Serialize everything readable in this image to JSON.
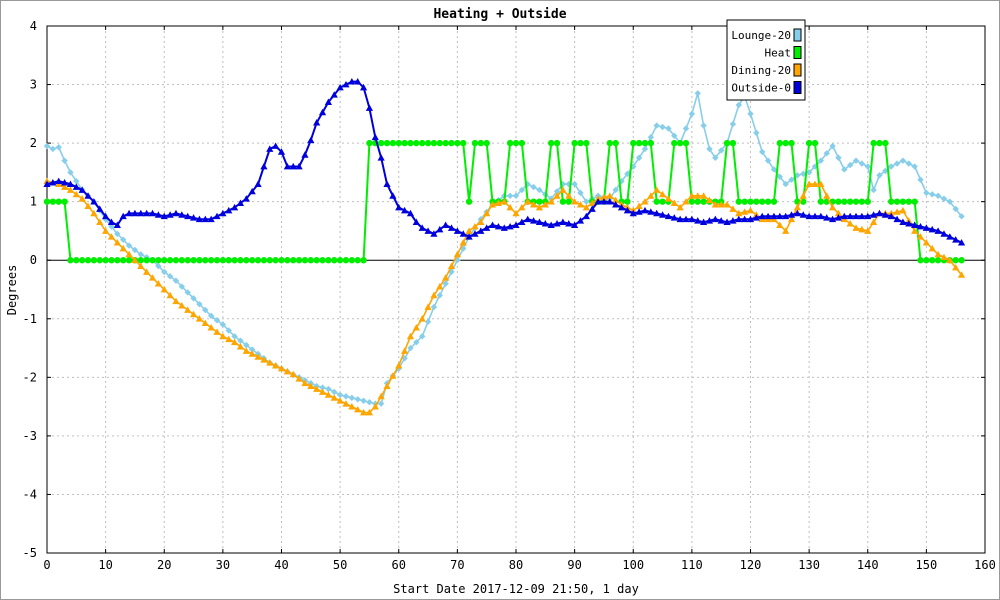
{
  "chart_data": {
    "type": "line",
    "title": "Heating + Outside",
    "xlabel": "Start Date 2017-12-09 21:50, 1 day",
    "ylabel": "Degrees",
    "xlim": [
      0,
      160
    ],
    "ylim": [
      -5,
      4
    ],
    "xticks": [
      0,
      10,
      20,
      30,
      40,
      50,
      60,
      70,
      80,
      90,
      100,
      110,
      120,
      130,
      140,
      150,
      160
    ],
    "yticks": [
      -5,
      -4,
      -3,
      -2,
      -1,
      0,
      1,
      2,
      3,
      4
    ],
    "grid": true,
    "legend_position": "top-right",
    "series": [
      {
        "name": "Lounge-20",
        "color": "#87ceeb",
        "marker": "diamond",
        "points": [
          [
            0,
            1.95
          ],
          [
            1,
            1.9
          ],
          [
            2,
            1.93
          ],
          [
            3,
            1.7
          ],
          [
            4,
            1.5
          ],
          [
            5,
            1.35
          ],
          [
            6,
            1.2
          ],
          [
            8,
            1.0
          ],
          [
            10,
            0.7
          ],
          [
            12,
            0.45
          ],
          [
            14,
            0.25
          ],
          [
            16,
            0.1
          ],
          [
            18,
            0.0
          ],
          [
            20,
            -0.2
          ],
          [
            22,
            -0.35
          ],
          [
            24,
            -0.55
          ],
          [
            26,
            -0.75
          ],
          [
            28,
            -0.95
          ],
          [
            30,
            -1.1
          ],
          [
            32,
            -1.3
          ],
          [
            34,
            -1.45
          ],
          [
            36,
            -1.6
          ],
          [
            38,
            -1.75
          ],
          [
            40,
            -1.85
          ],
          [
            42,
            -1.95
          ],
          [
            44,
            -2.05
          ],
          [
            46,
            -2.15
          ],
          [
            48,
            -2.2
          ],
          [
            50,
            -2.3
          ],
          [
            52,
            -2.35
          ],
          [
            54,
            -2.4
          ],
          [
            56,
            -2.45
          ],
          [
            57,
            -2.45
          ],
          [
            58,
            -2.1
          ],
          [
            60,
            -1.85
          ],
          [
            62,
            -1.5
          ],
          [
            64,
            -1.3
          ],
          [
            66,
            -0.8
          ],
          [
            68,
            -0.4
          ],
          [
            70,
            0.0
          ],
          [
            72,
            0.4
          ],
          [
            74,
            0.7
          ],
          [
            76,
            0.95
          ],
          [
            78,
            1.1
          ],
          [
            80,
            1.1
          ],
          [
            82,
            1.3
          ],
          [
            84,
            1.2
          ],
          [
            86,
            1.05
          ],
          [
            88,
            1.3
          ],
          [
            90,
            1.3
          ],
          [
            92,
            1.0
          ],
          [
            94,
            1.1
          ],
          [
            96,
            1.05
          ],
          [
            98,
            1.35
          ],
          [
            100,
            1.6
          ],
          [
            102,
            1.9
          ],
          [
            104,
            2.3
          ],
          [
            106,
            2.25
          ],
          [
            108,
            2.0
          ],
          [
            110,
            2.5
          ],
          [
            111,
            2.85
          ],
          [
            112,
            2.3
          ],
          [
            113,
            1.9
          ],
          [
            114,
            1.75
          ],
          [
            116,
            2.0
          ],
          [
            118,
            2.65
          ],
          [
            119,
            2.8
          ],
          [
            120,
            2.5
          ],
          [
            122,
            1.85
          ],
          [
            124,
            1.55
          ],
          [
            126,
            1.3
          ],
          [
            128,
            1.45
          ],
          [
            130,
            1.5
          ],
          [
            132,
            1.7
          ],
          [
            134,
            1.95
          ],
          [
            136,
            1.55
          ],
          [
            138,
            1.7
          ],
          [
            140,
            1.6
          ],
          [
            141,
            1.2
          ],
          [
            142,
            1.45
          ],
          [
            144,
            1.6
          ],
          [
            146,
            1.7
          ],
          [
            148,
            1.6
          ],
          [
            150,
            1.15
          ],
          [
            152,
            1.1
          ],
          [
            154,
            1.0
          ],
          [
            156,
            0.75
          ]
        ]
      },
      {
        "name": "Heat",
        "color": "#00ee00",
        "marker": "circle",
        "points": [
          [
            0,
            1
          ],
          [
            1,
            1
          ],
          [
            2,
            1
          ],
          [
            3,
            1
          ],
          [
            4,
            0
          ],
          [
            10,
            0
          ],
          [
            20,
            0
          ],
          [
            30,
            0
          ],
          [
            40,
            0
          ],
          [
            50,
            0
          ],
          [
            54,
            0
          ],
          [
            55,
            2
          ],
          [
            60,
            2
          ],
          [
            65,
            2
          ],
          [
            71,
            2
          ],
          [
            72,
            1
          ],
          [
            73,
            2
          ],
          [
            75,
            2
          ],
          [
            76,
            1
          ],
          [
            78,
            1
          ],
          [
            79,
            2
          ],
          [
            81,
            2
          ],
          [
            82,
            1
          ],
          [
            85,
            1
          ],
          [
            86,
            2
          ],
          [
            87,
            2
          ],
          [
            88,
            1
          ],
          [
            89,
            1
          ],
          [
            90,
            2
          ],
          [
            92,
            2
          ],
          [
            93,
            1
          ],
          [
            95,
            1
          ],
          [
            96,
            2
          ],
          [
            97,
            2
          ],
          [
            98,
            1
          ],
          [
            99,
            1
          ],
          [
            100,
            2
          ],
          [
            103,
            2
          ],
          [
            104,
            1
          ],
          [
            106,
            1
          ],
          [
            107,
            2
          ],
          [
            109,
            2
          ],
          [
            110,
            1
          ],
          [
            115,
            1
          ],
          [
            116,
            2
          ],
          [
            117,
            2
          ],
          [
            118,
            1
          ],
          [
            124,
            1
          ],
          [
            125,
            2
          ],
          [
            127,
            2
          ],
          [
            128,
            1
          ],
          [
            129,
            1
          ],
          [
            130,
            2
          ],
          [
            131,
            2
          ],
          [
            132,
            1
          ],
          [
            140,
            1
          ],
          [
            141,
            2
          ],
          [
            143,
            2
          ],
          [
            144,
            1
          ],
          [
            148,
            1
          ],
          [
            149,
            0
          ],
          [
            156,
            0
          ]
        ]
      },
      {
        "name": "Dining-20",
        "color": "#ffa500",
        "marker": "triangle",
        "points": [
          [
            0,
            1.35
          ],
          [
            2,
            1.3
          ],
          [
            4,
            1.2
          ],
          [
            6,
            1.05
          ],
          [
            8,
            0.8
          ],
          [
            10,
            0.5
          ],
          [
            12,
            0.3
          ],
          [
            14,
            0.1
          ],
          [
            16,
            -0.1
          ],
          [
            18,
            -0.3
          ],
          [
            20,
            -0.5
          ],
          [
            22,
            -0.7
          ],
          [
            24,
            -0.85
          ],
          [
            26,
            -1.0
          ],
          [
            28,
            -1.15
          ],
          [
            30,
            -1.3
          ],
          [
            32,
            -1.4
          ],
          [
            34,
            -1.55
          ],
          [
            36,
            -1.65
          ],
          [
            38,
            -1.75
          ],
          [
            40,
            -1.85
          ],
          [
            42,
            -1.95
          ],
          [
            44,
            -2.1
          ],
          [
            46,
            -2.2
          ],
          [
            48,
            -2.3
          ],
          [
            50,
            -2.4
          ],
          [
            52,
            -2.5
          ],
          [
            54,
            -2.6
          ],
          [
            55,
            -2.6
          ],
          [
            56,
            -2.5
          ],
          [
            58,
            -2.15
          ],
          [
            60,
            -1.8
          ],
          [
            62,
            -1.3
          ],
          [
            64,
            -1.0
          ],
          [
            66,
            -0.6
          ],
          [
            68,
            -0.3
          ],
          [
            70,
            0.1
          ],
          [
            72,
            0.5
          ],
          [
            74,
            0.65
          ],
          [
            76,
            0.95
          ],
          [
            78,
            1.0
          ],
          [
            80,
            0.8
          ],
          [
            82,
            1.0
          ],
          [
            84,
            0.9
          ],
          [
            86,
            1.0
          ],
          [
            88,
            1.2
          ],
          [
            90,
            1.0
          ],
          [
            92,
            0.9
          ],
          [
            94,
            1.05
          ],
          [
            96,
            1.1
          ],
          [
            98,
            0.95
          ],
          [
            100,
            0.85
          ],
          [
            102,
            1.0
          ],
          [
            104,
            1.2
          ],
          [
            106,
            1.05
          ],
          [
            108,
            0.9
          ],
          [
            110,
            1.1
          ],
          [
            112,
            1.1
          ],
          [
            114,
            0.95
          ],
          [
            116,
            0.95
          ],
          [
            118,
            0.8
          ],
          [
            120,
            0.85
          ],
          [
            122,
            0.7
          ],
          [
            124,
            0.7
          ],
          [
            126,
            0.5
          ],
          [
            128,
            0.9
          ],
          [
            130,
            1.3
          ],
          [
            132,
            1.3
          ],
          [
            134,
            0.9
          ],
          [
            136,
            0.7
          ],
          [
            138,
            0.55
          ],
          [
            140,
            0.5
          ],
          [
            142,
            0.8
          ],
          [
            144,
            0.8
          ],
          [
            146,
            0.85
          ],
          [
            148,
            0.5
          ],
          [
            150,
            0.3
          ],
          [
            152,
            0.1
          ],
          [
            154,
            0.0
          ],
          [
            156,
            -0.25
          ]
        ]
      },
      {
        "name": "Outside-0",
        "color": "#0000dd",
        "marker": "triangle",
        "points": [
          [
            0,
            1.3
          ],
          [
            2,
            1.35
          ],
          [
            4,
            1.3
          ],
          [
            6,
            1.2
          ],
          [
            8,
            1.0
          ],
          [
            10,
            0.75
          ],
          [
            11,
            0.65
          ],
          [
            12,
            0.6
          ],
          [
            13,
            0.75
          ],
          [
            14,
            0.8
          ],
          [
            18,
            0.8
          ],
          [
            20,
            0.75
          ],
          [
            22,
            0.8
          ],
          [
            26,
            0.7
          ],
          [
            28,
            0.7
          ],
          [
            30,
            0.8
          ],
          [
            32,
            0.9
          ],
          [
            34,
            1.05
          ],
          [
            36,
            1.3
          ],
          [
            37,
            1.6
          ],
          [
            38,
            1.9
          ],
          [
            39,
            1.95
          ],
          [
            40,
            1.85
          ],
          [
            41,
            1.6
          ],
          [
            43,
            1.6
          ],
          [
            44,
            1.8
          ],
          [
            45,
            2.05
          ],
          [
            46,
            2.35
          ],
          [
            48,
            2.7
          ],
          [
            50,
            2.95
          ],
          [
            52,
            3.05
          ],
          [
            53,
            3.05
          ],
          [
            54,
            2.95
          ],
          [
            55,
            2.6
          ],
          [
            56,
            2.1
          ],
          [
            57,
            1.75
          ],
          [
            58,
            1.3
          ],
          [
            60,
            0.9
          ],
          [
            62,
            0.8
          ],
          [
            63,
            0.65
          ],
          [
            64,
            0.55
          ],
          [
            66,
            0.45
          ],
          [
            68,
            0.6
          ],
          [
            70,
            0.5
          ],
          [
            72,
            0.4
          ],
          [
            74,
            0.5
          ],
          [
            76,
            0.6
          ],
          [
            78,
            0.55
          ],
          [
            80,
            0.6
          ],
          [
            82,
            0.7
          ],
          [
            84,
            0.65
          ],
          [
            86,
            0.6
          ],
          [
            88,
            0.65
          ],
          [
            90,
            0.6
          ],
          [
            92,
            0.75
          ],
          [
            94,
            1.0
          ],
          [
            96,
            1.0
          ],
          [
            98,
            0.9
          ],
          [
            100,
            0.8
          ],
          [
            102,
            0.85
          ],
          [
            104,
            0.8
          ],
          [
            106,
            0.75
          ],
          [
            108,
            0.7
          ],
          [
            110,
            0.7
          ],
          [
            112,
            0.65
          ],
          [
            114,
            0.7
          ],
          [
            116,
            0.65
          ],
          [
            118,
            0.7
          ],
          [
            120,
            0.7
          ],
          [
            122,
            0.75
          ],
          [
            124,
            0.75
          ],
          [
            126,
            0.75
          ],
          [
            128,
            0.8
          ],
          [
            130,
            0.75
          ],
          [
            132,
            0.75
          ],
          [
            134,
            0.7
          ],
          [
            136,
            0.75
          ],
          [
            138,
            0.75
          ],
          [
            140,
            0.75
          ],
          [
            142,
            0.8
          ],
          [
            144,
            0.75
          ],
          [
            146,
            0.65
          ],
          [
            148,
            0.6
          ],
          [
            150,
            0.55
          ],
          [
            152,
            0.5
          ],
          [
            154,
            0.4
          ],
          [
            156,
            0.3
          ]
        ]
      }
    ]
  }
}
